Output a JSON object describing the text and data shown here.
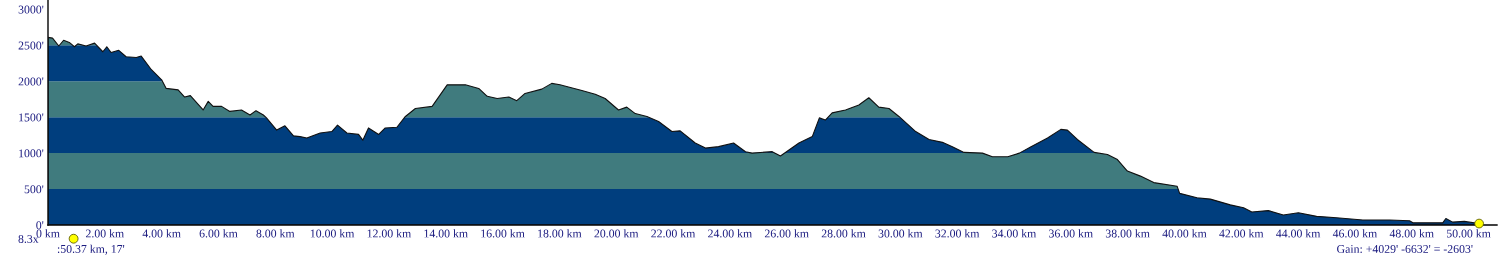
{
  "chart_data": {
    "type": "area",
    "x": [
      0,
      0.16,
      0.38,
      0.55,
      0.75,
      0.93,
      1.05,
      1.34,
      1.64,
      1.93,
      2.07,
      2.22,
      2.49,
      2.75,
      3.11,
      3.28,
      3.64,
      4.0,
      4.16,
      4.58,
      4.81,
      5.01,
      5.46,
      5.64,
      5.81,
      6.11,
      6.4,
      6.81,
      7.11,
      7.32,
      7.58,
      7.69,
      8.05,
      8.34,
      8.64,
      8.87,
      9.11,
      9.58,
      9.99,
      10.19,
      10.52,
      10.93,
      11.08,
      11.28,
      11.64,
      11.87,
      12.28,
      12.58,
      12.93,
      13.52,
      14.05,
      14.34,
      14.69,
      15.16,
      15.46,
      15.81,
      16.22,
      16.5,
      16.79,
      17.38,
      17.73,
      18.02,
      18.32,
      18.79,
      19.26,
      19.61,
      20.08,
      20.37,
      20.67,
      21.08,
      21.49,
      21.96,
      22.25,
      22.78,
      23.14,
      23.6,
      24.13,
      24.55,
      24.78,
      25.49,
      25.78,
      26.43,
      26.9,
      27.15,
      27.36,
      27.6,
      28.07,
      28.54,
      28.89,
      29.24,
      29.6,
      29.95,
      30.54,
      31.01,
      31.48,
      31.83,
      32.24,
      32.89,
      33.24,
      33.78,
      34.19,
      34.6,
      35.18,
      35.65,
      35.88,
      36.23,
      36.82,
      37.29,
      37.64,
      37.99,
      38.45,
      38.92,
      39.74,
      39.83,
      40.44,
      40.91,
      41.61,
      42.08,
      42.37,
      42.95,
      43.48,
      44.01,
      44.65,
      45.35,
      46.28,
      47.22,
      47.92,
      48.04,
      49.09,
      49.2,
      49.44,
      49.85,
      50.37
    ],
    "series": [
      {
        "color": "#003f7f",
        "values": [
          2610,
          2600,
          2490,
          2570,
          2540,
          2480,
          2520,
          2490,
          2530,
          2410,
          2480,
          2400,
          2430,
          2340,
          2330,
          2350,
          2160,
          2020,
          1900,
          1880,
          1780,
          1800,
          1600,
          1720,
          1650,
          1650,
          1580,
          1600,
          1530,
          1590,
          1530,
          1490,
          1320,
          1380,
          1240,
          1230,
          1210,
          1280,
          1300,
          1390,
          1280,
          1260,
          1180,
          1350,
          1260,
          1350,
          1360,
          1510,
          1620,
          1650,
          1950,
          1950,
          1950,
          1900,
          1790,
          1760,
          1780,
          1730,
          1830,
          1890,
          1970,
          1950,
          1920,
          1870,
          1820,
          1760,
          1600,
          1640,
          1550,
          1510,
          1440,
          1300,
          1310,
          1140,
          1070,
          1090,
          1140,
          1020,
          1000,
          1020,
          960,
          1140,
          1230,
          1490,
          1460,
          1560,
          1600,
          1670,
          1770,
          1640,
          1620,
          1510,
          1300,
          1190,
          1150,
          1090,
          1010,
          1000,
          950,
          950,
          1000,
          1090,
          1210,
          1330,
          1320,
          1190,
          1010,
          980,
          910,
          750,
          680,
          590,
          540,
          440,
          380,
          360,
          280,
          240,
          180,
          200,
          140,
          170,
          120,
          100,
          70,
          70,
          60,
          30,
          30,
          90,
          40,
          50,
          20
        ]
      },
      {
        "type": "scatter",
        "color": "#ffff00",
        "x": [
          50.37
        ],
        "values": [
          20
        ]
      }
    ],
    "xlim": [
      0,
      51
    ],
    "ylim": [
      0,
      3130
    ],
    "xticks": [
      {
        "value": 0,
        "label": "0 km"
      },
      {
        "value": 2,
        "label": "2.00 km"
      },
      {
        "value": 4,
        "label": "4.00 km"
      },
      {
        "value": 6,
        "label": "6.00 km"
      },
      {
        "value": 8,
        "label": "8.00 km"
      },
      {
        "value": 10,
        "label": "10.00 km"
      },
      {
        "value": 12,
        "label": "12.00 km"
      },
      {
        "value": 14,
        "label": "14.00 km"
      },
      {
        "value": 16,
        "label": "16.00 km"
      },
      {
        "value": 18,
        "label": "18.00 km"
      },
      {
        "value": 20,
        "label": "20.00 km"
      },
      {
        "value": 22,
        "label": "22.00 km"
      },
      {
        "value": 24,
        "label": "24.00 km"
      },
      {
        "value": 26,
        "label": "26.00 km"
      },
      {
        "value": 28,
        "label": "28.00 km"
      },
      {
        "value": 30,
        "label": "30.00 km"
      },
      {
        "value": 32,
        "label": "32.00 km"
      },
      {
        "value": 34,
        "label": "34.00 km"
      },
      {
        "value": 36,
        "label": "36.00 km"
      },
      {
        "value": 38,
        "label": "38.00 km"
      },
      {
        "value": 40,
        "label": "40.00 km"
      },
      {
        "value": 42,
        "label": "42.00 km"
      },
      {
        "value": 44,
        "label": "44.00 km"
      },
      {
        "value": 46,
        "label": "46.00 km"
      },
      {
        "value": 48,
        "label": "48.00 km"
      },
      {
        "value": 50,
        "label": "50.00 km"
      }
    ],
    "yticks": [
      {
        "value": 0,
        "label": "0'"
      },
      {
        "value": 500,
        "label": "500'"
      },
      {
        "value": 1000,
        "label": "1000'"
      },
      {
        "value": 1500,
        "label": "1500'"
      },
      {
        "value": 2000,
        "label": "2000'"
      },
      {
        "value": 2500,
        "label": "2500'"
      },
      {
        "value": 3000,
        "label": "3000'"
      }
    ],
    "bands": [
      {
        "axis": "y",
        "from": 0,
        "to": 500,
        "color": "#003f7f"
      },
      {
        "axis": "y",
        "from": 500,
        "to": 1000,
        "color": "#447f7f"
      },
      {
        "axis": "y",
        "from": 1000,
        "to": 1500,
        "color": "#003f7f"
      },
      {
        "axis": "y",
        "from": 1500,
        "to": 2000,
        "color": "#447f7f"
      },
      {
        "axis": "y",
        "from": 2000,
        "to": 2500,
        "color": "#003f7f"
      },
      {
        "axis": "y",
        "from": 2500,
        "to": 3000,
        "color": "#447f7f"
      }
    ],
    "annotations": [
      "8.3x",
      ":50.37 km, 17'",
      "Gain: +4029' -6632' = -2603'"
    ],
    "grid": false,
    "legend": false
  }
}
